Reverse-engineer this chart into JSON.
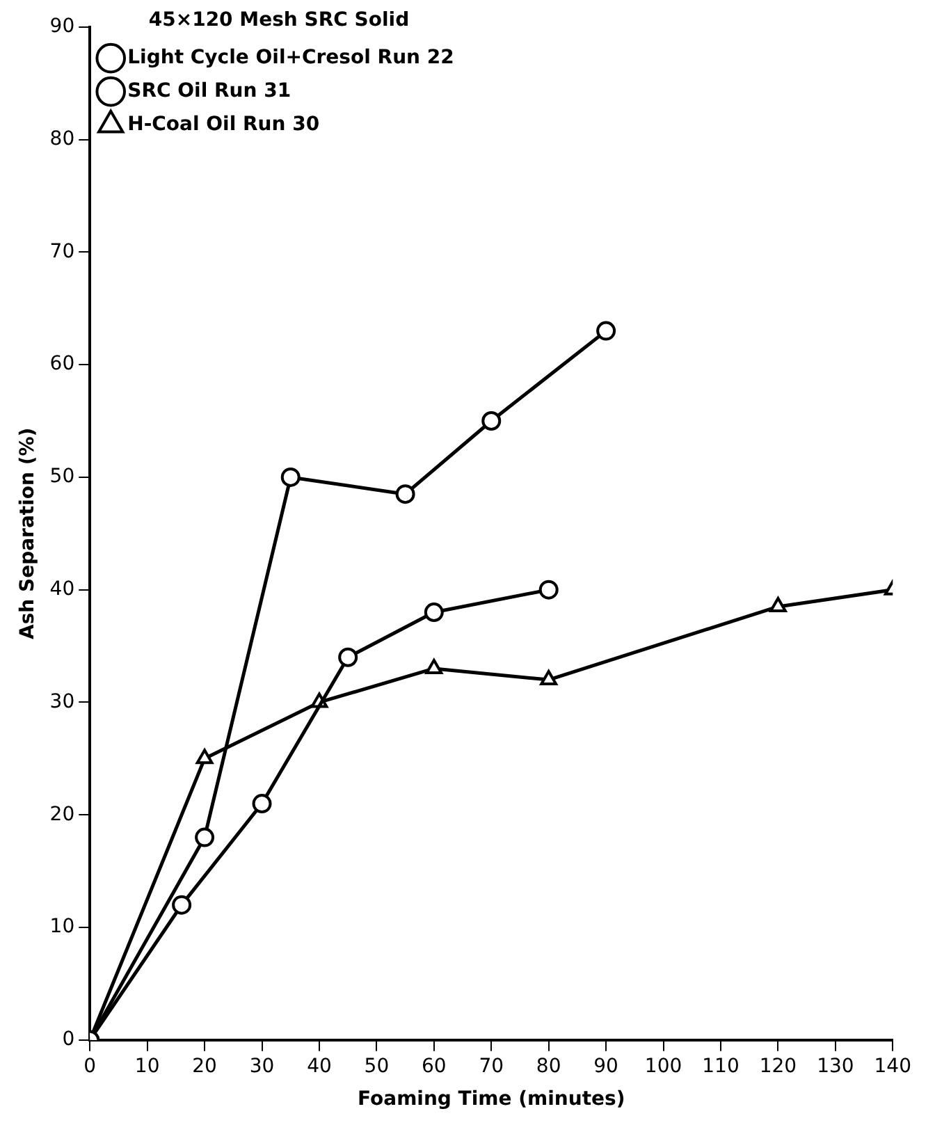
{
  "chart_data": {
    "type": "line",
    "xlabel": "Foaming Time (minutes)",
    "ylabel": "Ash Separation (%)",
    "legend_title": "45×120 Mesh SRC Solid",
    "xlim": [
      0,
      140
    ],
    "xticks": [
      0,
      10,
      20,
      30,
      40,
      50,
      60,
      70,
      80,
      90,
      100,
      110,
      120,
      130,
      140
    ],
    "ylim": [
      0,
      90
    ],
    "yticks": [
      0,
      10,
      20,
      30,
      40,
      50,
      60,
      70,
      80,
      90
    ],
    "grid": false,
    "legend": "top left",
    "series": [
      {
        "name": "Light Cycle Oil+Cresol Run 22",
        "color": "#000000",
        "marker": "circle",
        "x": [
          0,
          20,
          35,
          55,
          70,
          90
        ],
        "values": [
          0,
          18,
          50,
          48.5,
          55,
          63
        ]
      },
      {
        "name": "SRC Oil Run 31",
        "color": "#000000",
        "marker": "circle",
        "x": [
          0,
          16,
          30,
          45,
          60,
          80
        ],
        "values": [
          0,
          12,
          21,
          34,
          38,
          40
        ]
      },
      {
        "name": "H-Coal Oil Run 30",
        "color": "#000000",
        "marker": "triangle",
        "x": [
          0,
          20,
          40,
          60,
          80,
          120,
          140
        ],
        "values": [
          0,
          25,
          30,
          33,
          32,
          38.5,
          40
        ]
      }
    ]
  }
}
